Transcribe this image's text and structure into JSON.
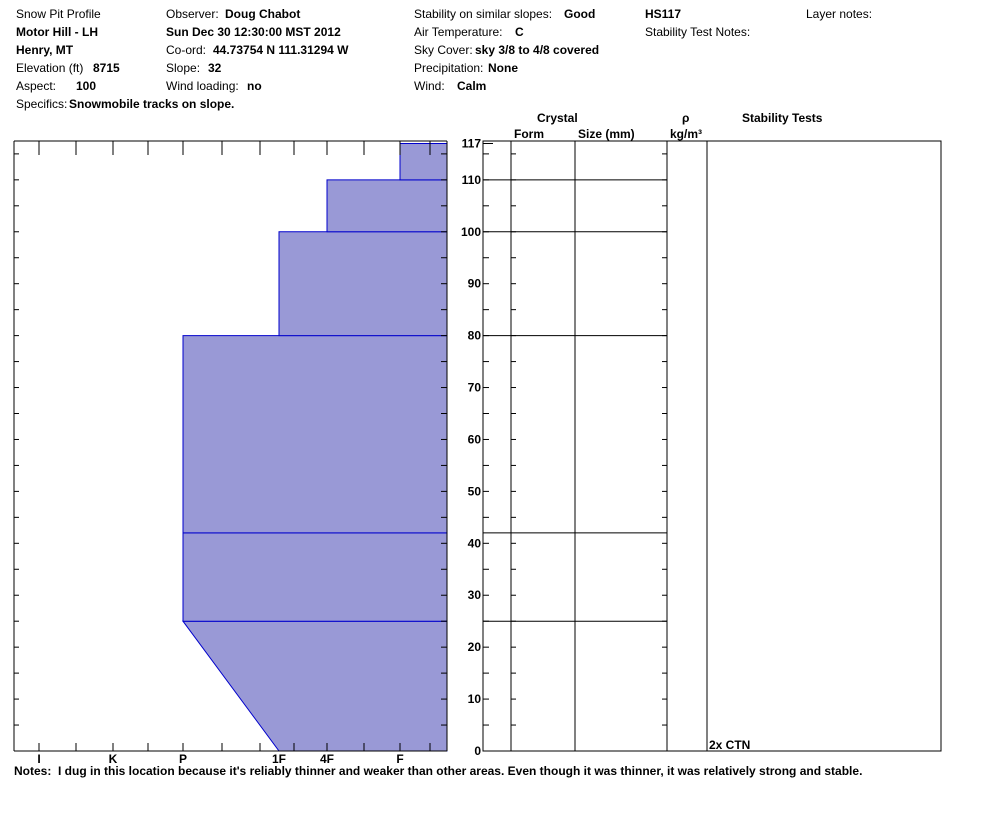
{
  "header": {
    "profile_title": "Snow Pit Profile",
    "location": "Motor Hill - LH",
    "region": "Henry, MT",
    "elevation_label": "Elevation (ft)",
    "elevation_value": "8715",
    "aspect_label": "Aspect:",
    "aspect_value": "100",
    "specifics_label": "Specifics:",
    "specifics_value": "Snowmobile tracks on slope.",
    "observer_label": "Observer:",
    "observer_value": "Doug Chabot",
    "datetime": "Sun Dec 30 12:30:00 MST 2012",
    "coord_label": "Co-ord:",
    "coord_value": "44.73754 N 111.31294 W",
    "slope_label": "Slope:",
    "slope_value": "32",
    "wind_loading_label": "Wind loading:",
    "wind_loading_value": "no",
    "stability_label": "Stability on similar slopes:",
    "stability_value": "Good",
    "air_temp_label": "Air Temperature:",
    "air_temp_value": "C",
    "sky_label": "Sky Cover:",
    "sky_value": "sky 3/8 to 4/8 covered",
    "precip_label": "Precipitation:",
    "precip_value": "None",
    "wind_label": "Wind:",
    "wind_value": "Calm",
    "hs": "HS117",
    "stability_test_notes_label": "Stability Test Notes:",
    "layer_notes_label": "Layer notes:"
  },
  "columns": {
    "crystal": "Crystal",
    "form": "Form",
    "size": "Size (mm)",
    "rho": "ρ",
    "density_unit": "kg/m³",
    "stability_tests": "Stability Tests"
  },
  "notes": {
    "label": "Notes:",
    "text": "I dug in this location because it's reliably thinner and weaker than other areas. Even though it was thinner, it was relatively strong and stable."
  },
  "chart_data": {
    "type": "area",
    "xlabel": "",
    "ylabel": "",
    "x_tick_labels": [
      "I",
      "K",
      "P",
      "1F",
      "4F",
      "F"
    ],
    "y_tick_labels": [
      "117",
      "110",
      "100",
      "90",
      "80",
      "70",
      "60",
      "50",
      "40",
      "30",
      "20",
      "10",
      "0"
    ],
    "ylim": [
      0,
      117
    ],
    "hand_hardness_scale": [
      "F",
      "4F",
      "1F",
      "P",
      "K",
      "I"
    ],
    "layers": [
      {
        "bottom_cm": 0,
        "top_cm": 25,
        "hardness_bottom": "1F",
        "hardness_top": "P"
      },
      {
        "bottom_cm": 25,
        "top_cm": 42,
        "hardness_bottom": "P",
        "hardness_top": "P"
      },
      {
        "bottom_cm": 42,
        "top_cm": 80,
        "hardness_bottom": "P",
        "hardness_top": "P"
      },
      {
        "bottom_cm": 80,
        "top_cm": 100,
        "hardness_bottom": "1F",
        "hardness_top": "1F"
      },
      {
        "bottom_cm": 100,
        "top_cm": 110,
        "hardness_bottom": "4F",
        "hardness_top": "4F"
      },
      {
        "bottom_cm": 110,
        "top_cm": 117,
        "hardness_bottom": "F",
        "hardness_top": "F"
      }
    ],
    "layer_boundaries_cm": [
      110,
      100,
      80,
      42,
      25
    ],
    "stability_tests": [
      {
        "depth_cm": 0,
        "label": "2x CTN"
      }
    ],
    "colors": {
      "fill": "#9999d6",
      "edge": "#0000cc",
      "axis": "#000000"
    }
  }
}
